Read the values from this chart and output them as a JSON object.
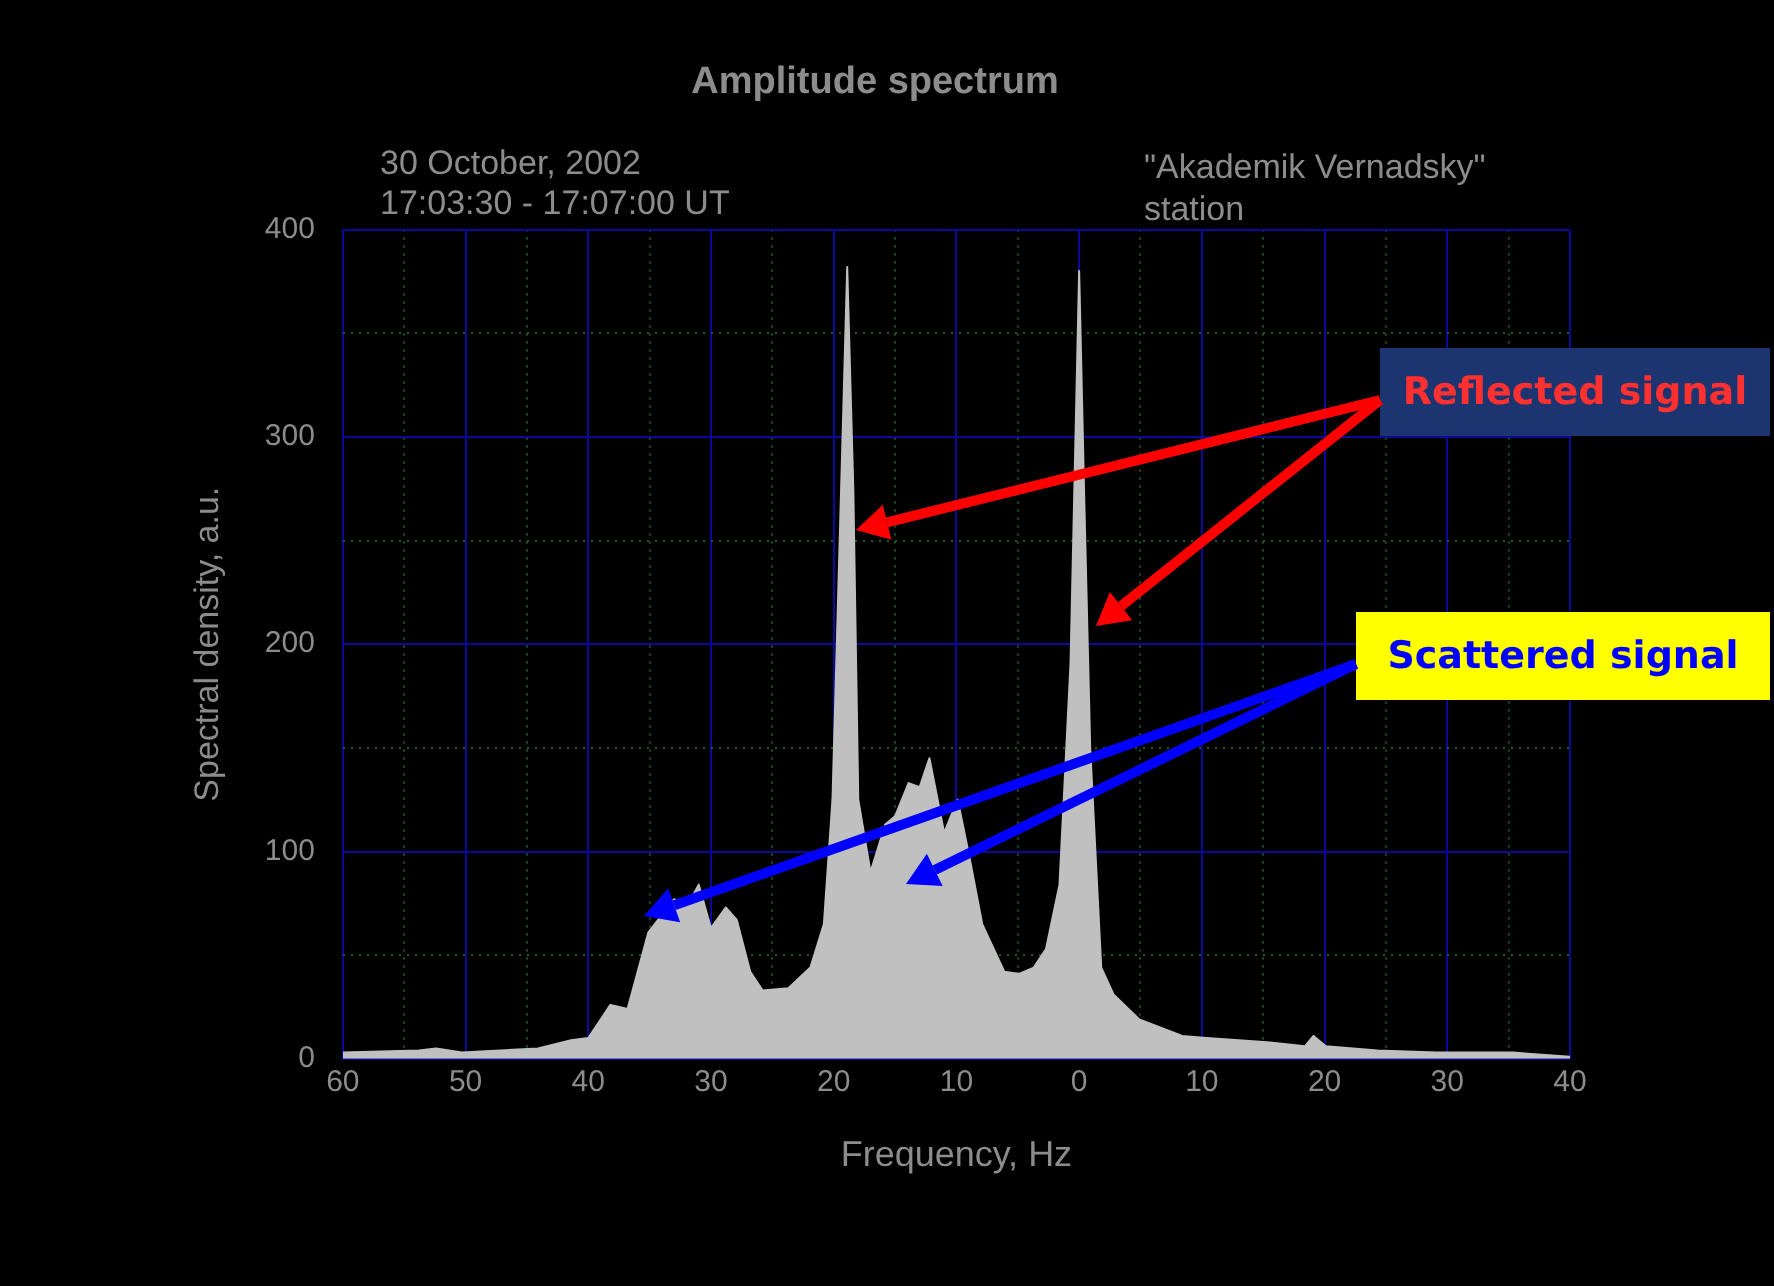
{
  "chart_data": {
    "type": "area",
    "title": "Amplitude spectrum",
    "xlabel": "Frequency, Hz",
    "ylabel": "Spectral density, a.u.",
    "annotations": [
      "30 October, 2002",
      "17:03:30 - 17:07:00 UT",
      "\"Akademik Vernadsky\"",
      "station",
      "Reflected signal",
      "Scattered signal"
    ],
    "x": [
      -60,
      -53.8,
      -52.4,
      -50.3,
      -44.1,
      -41.4,
      -40,
      -38.2,
      -36.8,
      -35.1,
      -33,
      -32,
      -31,
      -30,
      -28.8,
      -27.9,
      -26.8,
      -25.8,
      -23.7,
      -21.9,
      -20.8,
      -20.1,
      -19.4,
      -18.9,
      -18.4,
      -18,
      -17,
      -15.8,
      -15,
      -13.9,
      -13,
      -12.2,
      -11,
      -9.9,
      -8.9,
      -7.9,
      -6.1,
      -4.9,
      -3.7,
      -2.7,
      -1.6,
      -0.7,
      0,
      0.4,
      0.9,
      1.8,
      2.8,
      4.9,
      8.4,
      10.4,
      15.3,
      18.4,
      19.1,
      20.1,
      24.3,
      29.1,
      35.3,
      40
    ],
    "series": [
      {
        "color": "#c0c0c0",
        "values": [
          3,
          4,
          5,
          3,
          5,
          9,
          10,
          26,
          24,
          61,
          77,
          73,
          84,
          63,
          73,
          67,
          42,
          33,
          34,
          44,
          65,
          125,
          274,
          382,
          274,
          125,
          90,
          113,
          117,
          133,
          131,
          145,
          109,
          125,
          96,
          65,
          42,
          41,
          44,
          53,
          84,
          191,
          380,
          274,
          150,
          44,
          31,
          19,
          11,
          10,
          8,
          6,
          11,
          6,
          4,
          3,
          3,
          1
        ]
      }
    ],
    "xlim": [
      -60,
      40
    ],
    "xticks": [
      {
        "value": -60,
        "label": "60"
      },
      {
        "value": -55,
        "label": null
      },
      {
        "value": -50,
        "label": "50"
      },
      {
        "value": -45,
        "label": null
      },
      {
        "value": -40,
        "label": "40"
      },
      {
        "value": -35,
        "label": null
      },
      {
        "value": -30,
        "label": "30"
      },
      {
        "value": -25,
        "label": null
      },
      {
        "value": -20,
        "label": "20"
      },
      {
        "value": -15,
        "label": null
      },
      {
        "value": -10,
        "label": "10"
      },
      {
        "value": -5,
        "label": null
      },
      0,
      {
        "value": 5,
        "label": null
      },
      10,
      {
        "value": 15,
        "label": null
      },
      20,
      {
        "value": 25,
        "label": null
      },
      30,
      {
        "value": 35,
        "label": null
      },
      40
    ],
    "ylim": [
      0,
      400
    ],
    "yticks": [
      0,
      {
        "value": 50,
        "label": null
      },
      100,
      {
        "value": 150,
        "label": null
      },
      200,
      {
        "value": 250,
        "label": null
      },
      300,
      {
        "value": 350,
        "label": null
      },
      400
    ],
    "grid": true,
    "legend": false
  }
}
